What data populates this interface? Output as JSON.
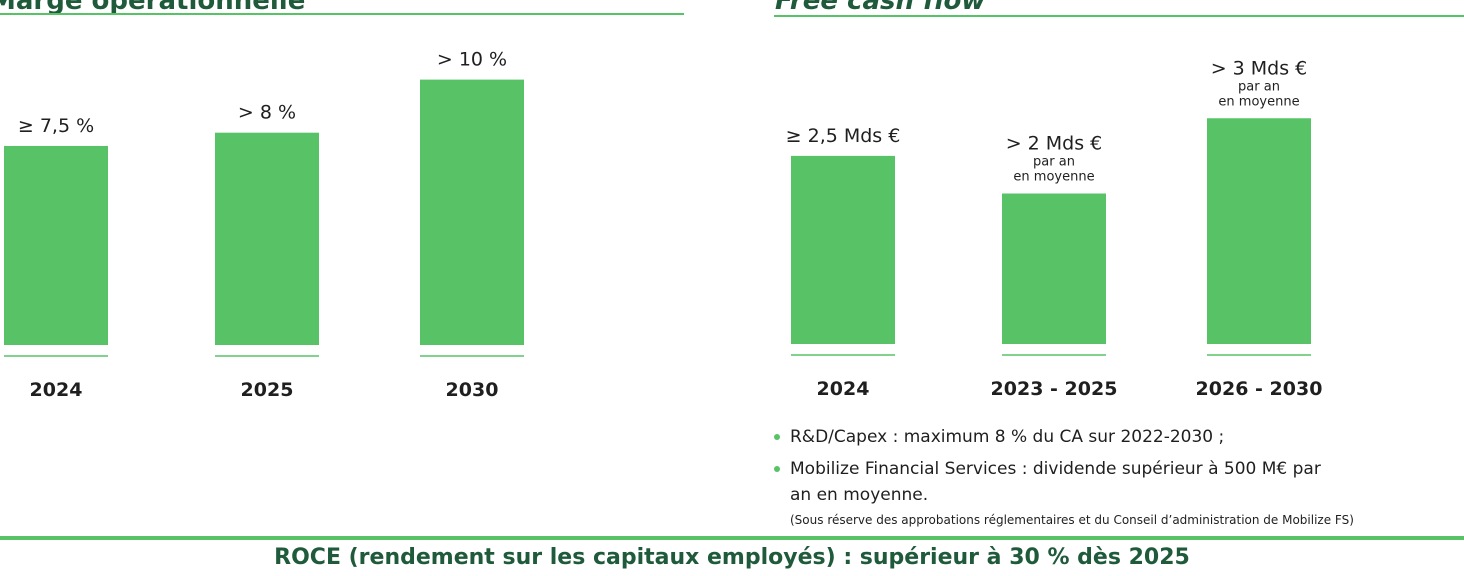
{
  "left_panel": {
    "title": "Marge opérationnelle"
  },
  "right_panel": {
    "title": "Free cash flow"
  },
  "chart_data": [
    {
      "type": "bar",
      "title": "Marge opérationnelle",
      "categories": [
        "2024",
        "2025",
        "2030"
      ],
      "values": [
        7.5,
        8,
        10
      ],
      "value_labels": [
        "≥ 7,5 %",
        "> 8 %",
        "> 10 %"
      ],
      "value_sublabels": [
        "",
        "",
        ""
      ],
      "unit": "%",
      "ylim": [
        0,
        10.4
      ],
      "color": "#57c366"
    },
    {
      "type": "bar",
      "title": "Free cash flow",
      "categories": [
        "2024",
        "2023 - 2025",
        "2026 - 2030"
      ],
      "values": [
        2.5,
        2,
        3
      ],
      "value_labels": [
        "≥ 2,5 Mds €",
        "> 2 Mds €",
        "> 3 Mds €"
      ],
      "value_sublabels": [
        "",
        "par an\nen moyenne",
        "par an\nen moyenne"
      ],
      "unit": "Mds €",
      "ylim": [
        0,
        4.0
      ],
      "color": "#57c366"
    }
  ],
  "bullets": [
    "R&D/Capex : maximum 8 % du CA sur 2022-2030 ;",
    "Mobilize Financial Services : dividende supérieur à 500 M€ par an en moyenne."
  ],
  "note": "(Sous réserve des approbations réglementaires et du Conseil d’administration de Mobilize FS)",
  "footer": "ROCE (rendement sur les capitaux employés) : supérieur à 30 % dès 2025",
  "accent_color": "#57c366",
  "title_color": "#1f5a3a"
}
